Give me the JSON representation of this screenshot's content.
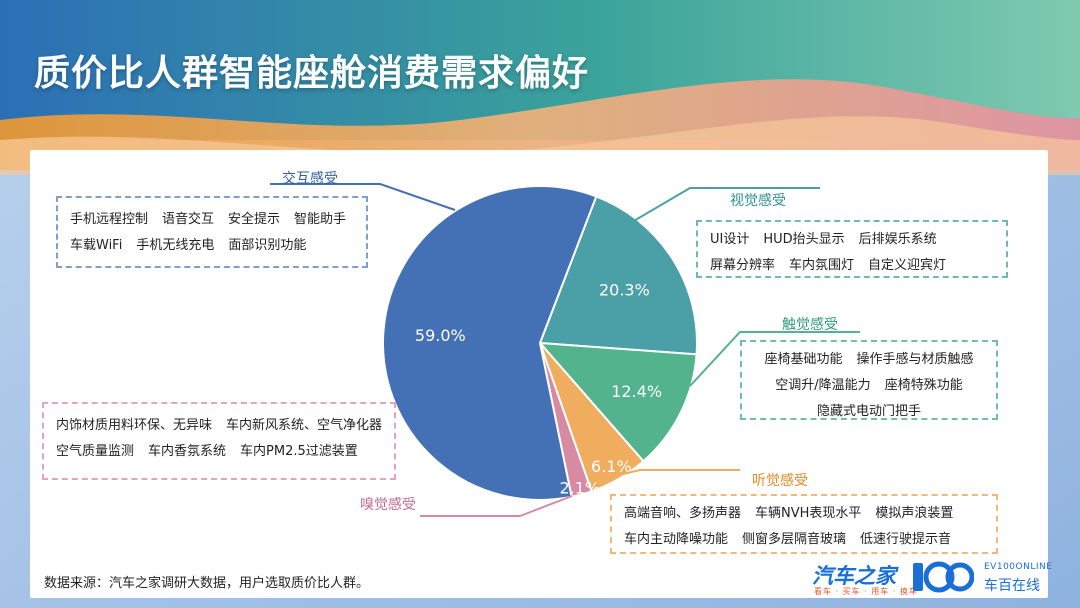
{
  "title": "质价比人群智能座舱消费需求偏好",
  "chart_data": {
    "type": "pie",
    "slices": [
      {
        "name": "交互感受",
        "value": 59.0,
        "label": "59.0%",
        "color": "#4471b5",
        "items": [
          [
            "手机远程控制",
            "语音交互",
            "安全提示",
            "智能助手"
          ],
          [
            "车载WiFi",
            "手机无线充电",
            "面部识别功能"
          ]
        ]
      },
      {
        "name": "视觉感受",
        "value": 20.3,
        "label": "20.3%",
        "color": "#4aa0a6",
        "items": [
          [
            "UI设计",
            "HUD抬头显示",
            "后排娱乐系统"
          ],
          [
            "屏幕分辨率",
            "车内氛围灯",
            "自定义迎宾灯"
          ]
        ]
      },
      {
        "name": "触觉感受",
        "value": 12.4,
        "label": "12.4%",
        "color": "#52b38c",
        "items": [
          [
            "座椅基础功能",
            "操作手感与材质触感"
          ],
          [
            "空调升/降温能力",
            "座椅特殊功能"
          ],
          [
            "隐藏式电动门把手"
          ]
        ]
      },
      {
        "name": "听觉感受",
        "value": 6.1,
        "label": "6.1%",
        "color": "#f0ad5e",
        "items": [
          [
            "高端音响、多扬声器",
            "车辆NVH表现水平",
            "模拟声浪装置"
          ],
          [
            "车内主动降噪功能",
            "侧窗多层隔音玻璃",
            "低速行驶提示音"
          ]
        ]
      },
      {
        "name": "嗅觉感受",
        "value": 2.1,
        "label": "2.1%",
        "color": "#d78ba3",
        "items": [
          [
            "内饰材质用料环保、无异味",
            "车内新风系统、空气净化器"
          ],
          [
            "空气质量监测",
            "车内香氛系统",
            "车内PM2.5过滤装置"
          ]
        ]
      }
    ]
  },
  "footnote": "数据来源：汽车之家调研大数据，用户选取质价比人群。",
  "logos": {
    "autohome": "汽车之家",
    "autohome_tagline": "看车 · 买车 · 用车 · 换车",
    "ev100": "EV100ONLINE",
    "ev100_cn": "车百在线"
  }
}
